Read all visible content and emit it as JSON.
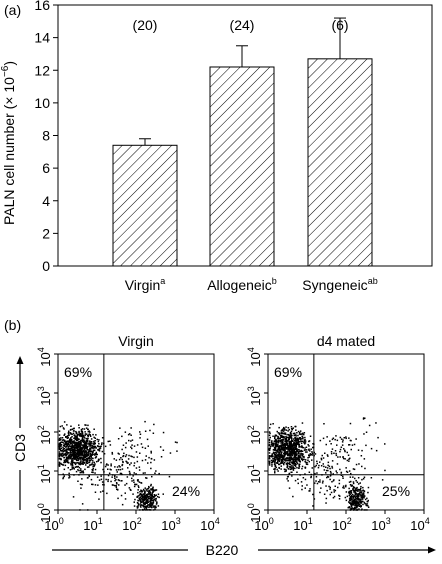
{
  "panel_a": {
    "label": "(a)",
    "chart_data": {
      "type": "bar",
      "categories": [
        "Virgin",
        "Allogeneic",
        "Syngeneic"
      ],
      "category_superscripts": [
        "a",
        "b",
        "ab"
      ],
      "values": [
        7.4,
        12.2,
        12.7
      ],
      "error_upper": [
        0.4,
        1.3,
        2.5
      ],
      "counts": [
        "(20)",
        "(24)",
        "(6)"
      ],
      "ylabel_main": "PALN cell number (× 10",
      "ylabel_exp": "−6",
      "ylabel_close": ")",
      "ylim": [
        0,
        16
      ],
      "yticks": [
        "0",
        "2",
        "4",
        "6",
        "8",
        "10",
        "12",
        "14",
        "16"
      ],
      "bar_pattern": "diagonal-hatch",
      "grid": false
    }
  },
  "panel_b": {
    "label": "(b)",
    "axis_y_label": "CD3",
    "axis_x_label": "B220",
    "tick_base": "10",
    "tick_exps": [
      "0",
      "1",
      "2",
      "3",
      "4"
    ],
    "plots": [
      {
        "title": "Virgin",
        "upper_left_pct": "69%",
        "lower_right_pct": "24%",
        "chart_data": {
          "type": "scatter",
          "description_kind": "flow-cytometry-dot-plot",
          "x_scale": "log",
          "y_scale": "log",
          "xlim": [
            1,
            10000
          ],
          "ylim": [
            1,
            10000
          ],
          "gate_x": 15,
          "gate_y": 8,
          "populations": [
            {
              "name": "CD3+ B220-",
              "percent": 69
            },
            {
              "name": "CD3- B220+",
              "percent": 24
            }
          ]
        }
      },
      {
        "title": "d4 mated",
        "upper_left_pct": "69%",
        "lower_right_pct": "25%",
        "chart_data": {
          "type": "scatter",
          "description_kind": "flow-cytometry-dot-plot",
          "x_scale": "log",
          "y_scale": "log",
          "xlim": [
            1,
            10000
          ],
          "ylim": [
            1,
            10000
          ],
          "gate_x": 15,
          "gate_y": 8,
          "populations": [
            {
              "name": "CD3+ B220-",
              "percent": 69
            },
            {
              "name": "CD3- B220+",
              "percent": 25
            }
          ]
        }
      }
    ]
  }
}
